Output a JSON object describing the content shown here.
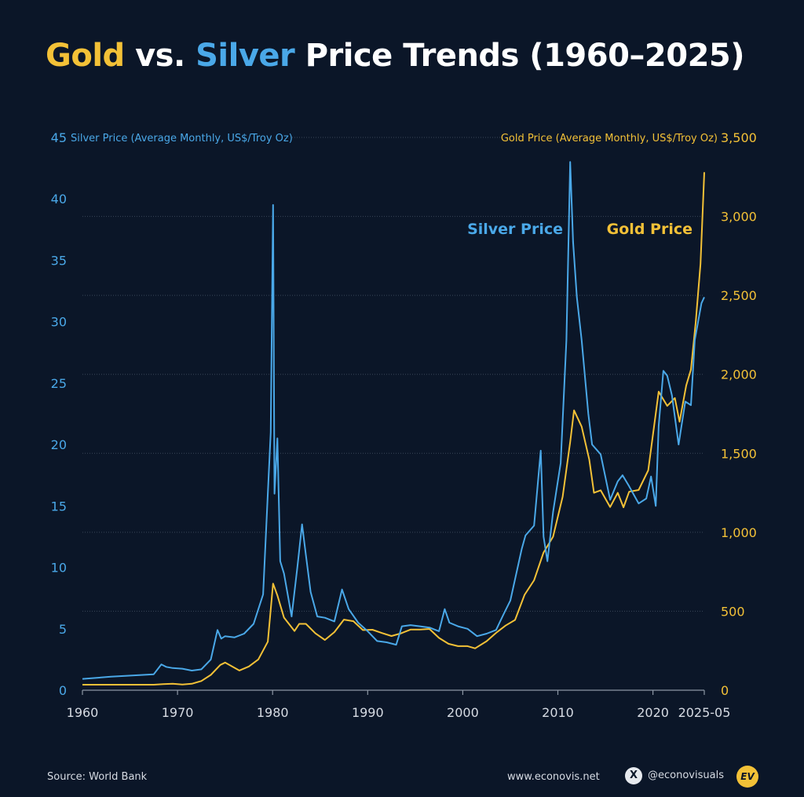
{
  "title": {
    "part_gold": "Gold",
    "part_vs": " vs. ",
    "part_silver": "Silver",
    "part_rest": " Price Trends (1960–2025)"
  },
  "colors": {
    "background": "#0b1628",
    "gold": "#f3c137",
    "silver": "#4aa8e8",
    "grid": "#3a4658",
    "text": "#d6dbe3"
  },
  "chart_data": {
    "type": "line",
    "left_axis_label": "Silver Price (Average Monthly, US$/Troy Oz)",
    "right_axis_label": "Gold Price (Average Monthly, US$/Troy Oz)",
    "left_ticks": [
      "0",
      "5",
      "10",
      "15",
      "20",
      "25",
      "30",
      "35",
      "40",
      "45"
    ],
    "right_ticks": [
      "0",
      "500",
      "1,000",
      "1,500",
      "2,000",
      "2,500",
      "3,000",
      "3,500"
    ],
    "x_ticks": [
      "1960",
      "1970",
      "1980",
      "1990",
      "2000",
      "2010",
      "2020",
      "2025-05"
    ],
    "ylim_left": [
      0,
      45
    ],
    "ylim_right": [
      0,
      3500
    ],
    "xlim": [
      1960,
      2025.4
    ],
    "grid": true,
    "series": [
      {
        "name": "Silver Price",
        "axis": "left",
        "x": [
          1960,
          1963,
          1967.5,
          1968.3,
          1968.8,
          1969.5,
          1970.5,
          1971.5,
          1972.5,
          1973.5,
          1974.2,
          1974.6,
          1975,
          1976,
          1977,
          1978,
          1979,
          1979.5,
          1979.8,
          1980.05,
          1980.2,
          1980.5,
          1980.8,
          1981.2,
          1982,
          1982.6,
          1983.1,
          1983.5,
          1984,
          1984.7,
          1985.5,
          1986.5,
          1987.3,
          1988,
          1989,
          1990,
          1991,
          1992,
          1993,
          1993.6,
          1994.5,
          1995.5,
          1996.5,
          1997.5,
          1998.1,
          1998.6,
          1999.5,
          2000.5,
          2001.5,
          2002.5,
          2003.5,
          2004.3,
          2005,
          2006.2,
          2006.6,
          2007.5,
          2008.2,
          2008.5,
          2008.9,
          2009.5,
          2010.3,
          2010.9,
          2011.3,
          2011.6,
          2012,
          2012.5,
          2013.2,
          2013.6,
          2014.5,
          2015.5,
          2016.3,
          2016.8,
          2017.5,
          2018.5,
          2019.3,
          2019.8,
          2020.3,
          2020.6,
          2021.1,
          2021.5,
          2022,
          2022.7,
          2023.4,
          2024,
          2024.4,
          2024.8,
          2025.1,
          2025.4
        ],
        "values": [
          0.92,
          1.1,
          1.3,
          2.1,
          1.9,
          1.8,
          1.75,
          1.6,
          1.7,
          2.5,
          4.9,
          4.2,
          4.4,
          4.3,
          4.6,
          5.4,
          7.8,
          16.0,
          21.0,
          39.5,
          16.0,
          20.5,
          10.5,
          9.5,
          6.0,
          10.0,
          13.5,
          11.0,
          8.0,
          6.0,
          5.9,
          5.6,
          8.2,
          6.6,
          5.5,
          4.8,
          4.0,
          3.9,
          3.7,
          5.2,
          5.3,
          5.2,
          5.1,
          4.8,
          6.6,
          5.5,
          5.2,
          5.0,
          4.4,
          4.6,
          4.9,
          6.2,
          7.3,
          11.5,
          12.6,
          13.4,
          19.5,
          12.5,
          10.5,
          14.5,
          18.5,
          28.5,
          43.0,
          36.5,
          32.0,
          28.5,
          22.5,
          20.0,
          19.2,
          15.5,
          17.0,
          17.5,
          16.6,
          15.2,
          15.6,
          17.4,
          15.0,
          21.5,
          26.0,
          25.6,
          24.0,
          20.0,
          23.5,
          23.2,
          28.5,
          30.2,
          31.5,
          32.0
        ]
      },
      {
        "name": "Gold Price",
        "axis": "right",
        "x": [
          1960,
          1967.5,
          1968.5,
          1969.5,
          1970.5,
          1971.5,
          1972.5,
          1973.5,
          1974.5,
          1975,
          1976.5,
          1977.5,
          1978.5,
          1979.5,
          1980.05,
          1980.5,
          1981.2,
          1982.3,
          1982.8,
          1983.5,
          1984.5,
          1985.5,
          1986.5,
          1987.5,
          1988.5,
          1989.5,
          1990.5,
          1991.5,
          1992.5,
          1993.5,
          1994.5,
          1995.5,
          1996.5,
          1997.5,
          1998.5,
          1999.5,
          2000.5,
          2001.3,
          2002.5,
          2003.5,
          2004.5,
          2005.5,
          2006.5,
          2007.5,
          2008.5,
          2009.5,
          2010.5,
          2011.3,
          2011.7,
          2012.5,
          2013.3,
          2013.8,
          2014.5,
          2015.5,
          2016.3,
          2016.9,
          2017.5,
          2018.5,
          2019.5,
          2020.6,
          2021.5,
          2022.3,
          2022.8,
          2023.5,
          2024,
          2024.5,
          2025,
          2025.4
        ],
        "values": [
          35,
          35,
          39,
          41,
          36,
          41,
          58,
          97,
          160,
          175,
          125,
          150,
          195,
          307,
          675,
          600,
          460,
          375,
          420,
          420,
          360,
          318,
          368,
          447,
          437,
          381,
          383,
          362,
          343,
          360,
          384,
          384,
          388,
          331,
          294,
          279,
          279,
          265,
          310,
          363,
          409,
          445,
          604,
          696,
          872,
          972,
          1225,
          1571,
          1772,
          1669,
          1460,
          1250,
          1266,
          1160,
          1250,
          1158,
          1257,
          1268,
          1392,
          1890,
          1800,
          1850,
          1700,
          1930,
          2030,
          2330,
          2700,
          3280
        ]
      }
    ],
    "annotations": [
      {
        "text": "Silver Price",
        "series": "Silver Price"
      },
      {
        "text": "Gold Price",
        "series": "Gold Price"
      }
    ]
  },
  "footer": {
    "source": "Source: World Bank",
    "website": "www.econovis.net",
    "x_glyph": "X",
    "handle": "@econovisuals",
    "logo": "EV"
  }
}
